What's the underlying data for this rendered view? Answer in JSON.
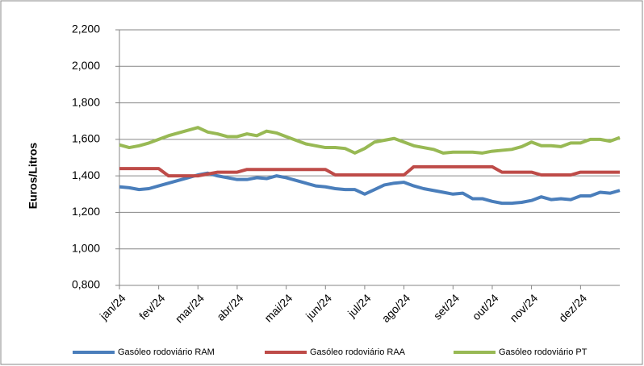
{
  "chart_data": {
    "type": "line",
    "y_label": "Euros/Litros",
    "categories": [
      "jan/24",
      null,
      null,
      null,
      "fev/24",
      null,
      null,
      null,
      "mar/24",
      null,
      null,
      null,
      "abr/24",
      null,
      null,
      null,
      null,
      "mai/24",
      null,
      null,
      null,
      "jun/24",
      null,
      null,
      null,
      "jul/24",
      null,
      null,
      null,
      "ago/24",
      null,
      null,
      null,
      null,
      "set/24",
      null,
      null,
      null,
      "out/24",
      null,
      null,
      null,
      "nov/24",
      null,
      null,
      null,
      null,
      "dez/24",
      null,
      null,
      null,
      null
    ],
    "series": [
      {
        "name": "Gasóleo rodoviário RAM",
        "color": "#4a7ebb",
        "values": [
          1.34,
          1.335,
          1.325,
          1.33,
          1.345,
          1.36,
          1.375,
          1.39,
          1.405,
          1.415,
          1.4,
          1.39,
          1.38,
          1.38,
          1.39,
          1.385,
          1.4,
          1.39,
          1.375,
          1.36,
          1.345,
          1.34,
          1.33,
          1.325,
          1.325,
          1.3,
          1.325,
          1.35,
          1.36,
          1.365,
          1.345,
          1.33,
          1.32,
          1.31,
          1.3,
          1.305,
          1.275,
          1.275,
          1.26,
          1.25,
          1.25,
          1.255,
          1.265,
          1.285,
          1.27,
          1.275,
          1.27,
          1.29,
          1.29,
          1.31,
          1.305,
          1.32
        ]
      },
      {
        "name": "Gasóleo rodoviário RAA",
        "color": "#be4b48",
        "values": [
          1.44,
          1.44,
          1.44,
          1.44,
          1.44,
          1.4,
          1.4,
          1.4,
          1.4,
          1.41,
          1.42,
          1.42,
          1.42,
          1.435,
          1.435,
          1.435,
          1.435,
          1.435,
          1.435,
          1.435,
          1.435,
          1.435,
          1.405,
          1.405,
          1.405,
          1.405,
          1.405,
          1.405,
          1.405,
          1.405,
          1.45,
          1.45,
          1.45,
          1.45,
          1.45,
          1.45,
          1.45,
          1.45,
          1.45,
          1.42,
          1.42,
          1.42,
          1.42,
          1.405,
          1.405,
          1.405,
          1.405,
          1.42,
          1.42,
          1.42,
          1.42,
          1.42
        ]
      },
      {
        "name": "Gasóleo rodoviário PT",
        "color": "#98b954",
        "values": [
          1.57,
          1.555,
          1.565,
          1.58,
          1.6,
          1.62,
          1.635,
          1.65,
          1.665,
          1.64,
          1.63,
          1.615,
          1.615,
          1.63,
          1.62,
          1.645,
          1.635,
          1.615,
          1.595,
          1.575,
          1.565,
          1.555,
          1.555,
          1.55,
          1.525,
          1.55,
          1.585,
          1.595,
          1.605,
          1.585,
          1.565,
          1.555,
          1.545,
          1.525,
          1.53,
          1.53,
          1.53,
          1.525,
          1.535,
          1.54,
          1.545,
          1.56,
          1.585,
          1.565,
          1.565,
          1.56,
          1.58,
          1.58,
          1.6,
          1.6,
          1.59,
          1.61
        ]
      }
    ],
    "ylim": [
      0.8,
      2.2
    ],
    "yticks": [
      {
        "value": 0.8,
        "label": "0,800"
      },
      {
        "value": 1.0,
        "label": "1,000"
      },
      {
        "value": 1.2,
        "label": "1,200"
      },
      {
        "value": 1.4,
        "label": "1,400"
      },
      {
        "value": 1.6,
        "label": "1,600"
      },
      {
        "value": 1.8,
        "label": "1,800"
      },
      {
        "value": 2.0,
        "label": "2,000"
      },
      {
        "value": 2.2,
        "label": "2,200"
      }
    ],
    "grid": true,
    "legend": "bottom"
  }
}
